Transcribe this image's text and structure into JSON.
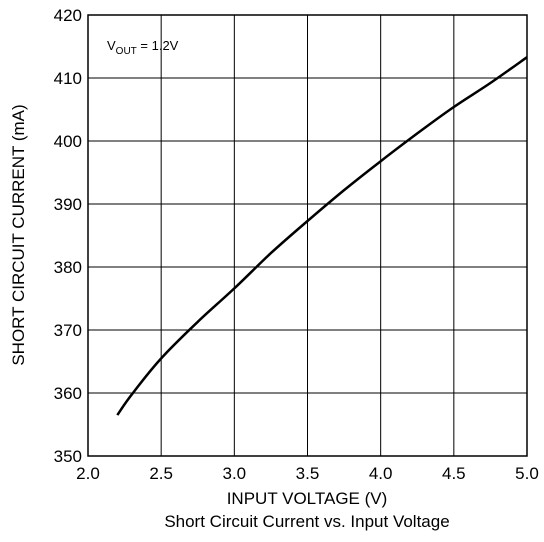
{
  "chart_data": {
    "type": "line",
    "title": "Short Circuit Current vs. Input Voltage",
    "xlabel": "INPUT VOLTAGE (V)",
    "ylabel": "SHORT CIRCUIT CURRENT (mA)",
    "xlim": [
      2.0,
      5.0
    ],
    "ylim": [
      350,
      420
    ],
    "xticks": [
      "2.0",
      "2.5",
      "3.0",
      "3.5",
      "4.0",
      "4.5",
      "5.0"
    ],
    "yticks": [
      "350",
      "360",
      "370",
      "380",
      "390",
      "400",
      "410",
      "420"
    ],
    "grid": true,
    "annotation": {
      "main": "V",
      "sub": "OUT",
      "rest": " = 1.2V"
    },
    "series": [
      {
        "x": [
          2.2,
          2.3,
          2.5,
          2.75,
          3.0,
          3.25,
          3.5,
          3.75,
          4.0,
          4.25,
          4.5,
          4.75,
          5.0
        ],
        "y": [
          356.5,
          359.8,
          365.5,
          371.3,
          376.6,
          382.2,
          387.3,
          392.2,
          396.8,
          401.2,
          405.4,
          409.2,
          413.3
        ]
      }
    ]
  }
}
